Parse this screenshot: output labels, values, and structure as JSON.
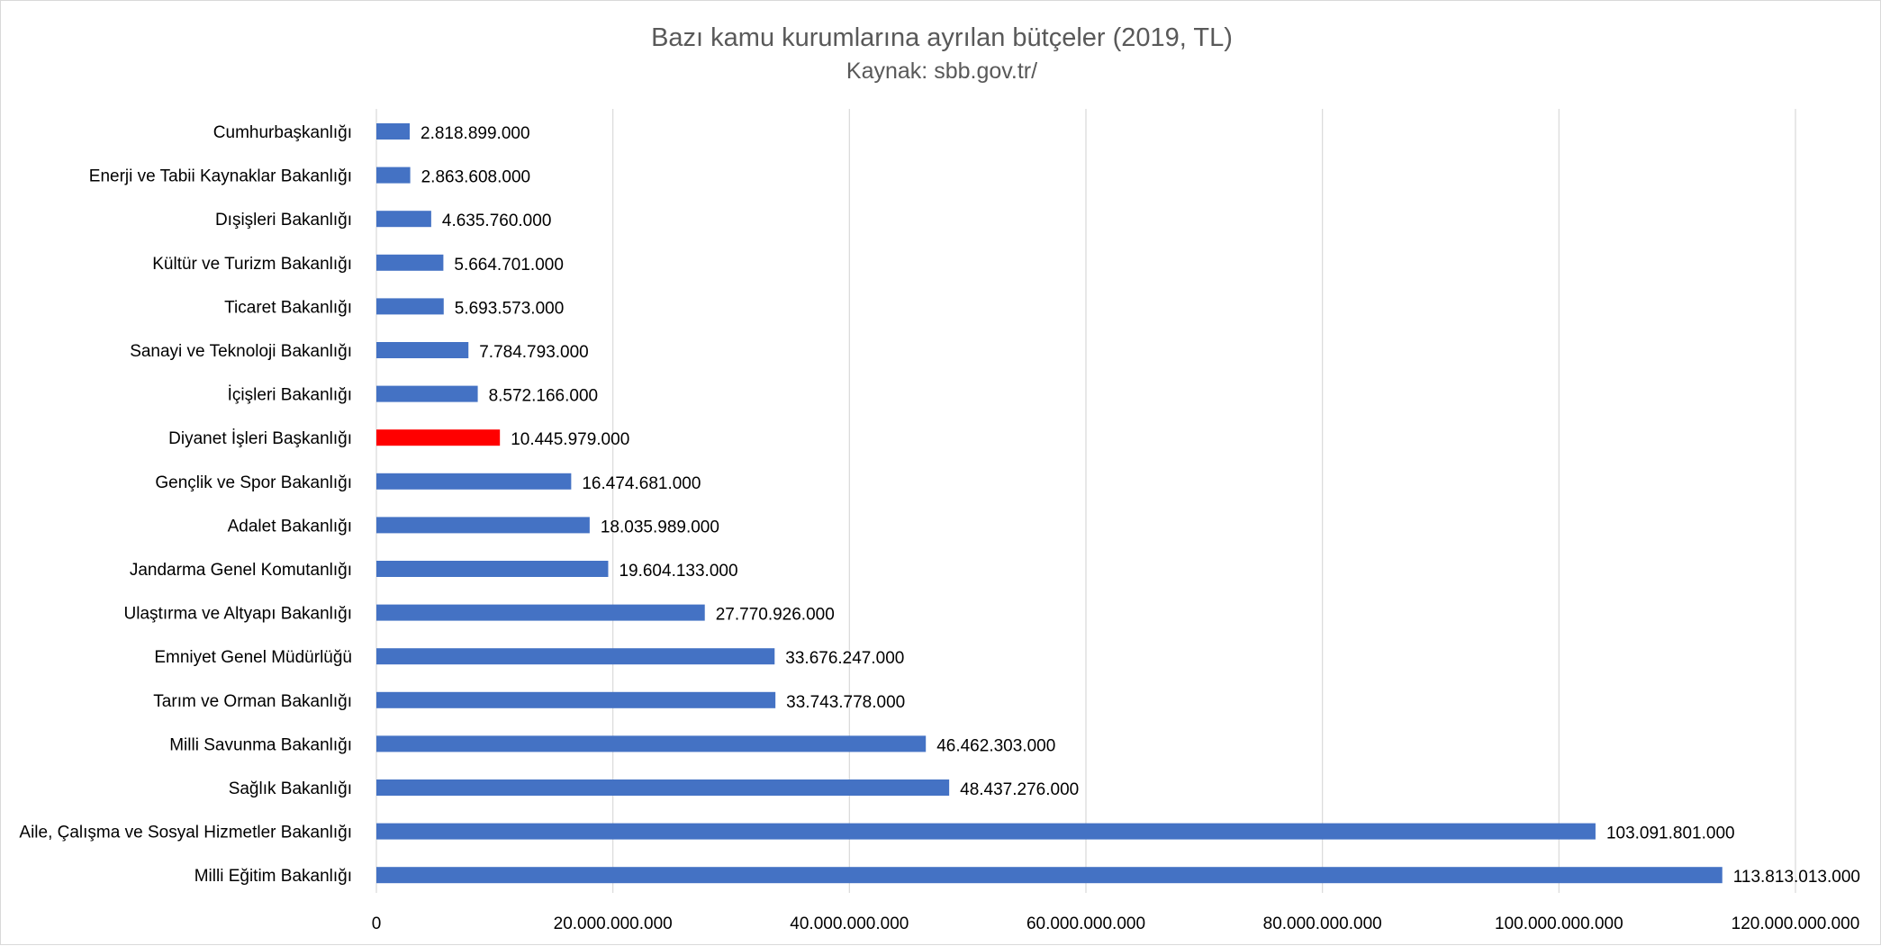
{
  "chart_data": {
    "type": "bar",
    "orientation": "horizontal",
    "title": "Bazı kamu kurumlarına ayrılan bütçeler (2019, TL)",
    "subtitle": "Kaynak: sbb.gov.tr/",
    "xlabel": "",
    "ylabel": "",
    "xlim": [
      0,
      120000000000
    ],
    "x_ticks": [
      0,
      20000000000,
      40000000000,
      60000000000,
      80000000000,
      100000000000,
      120000000000
    ],
    "x_tick_labels": [
      "0",
      "20.000.000.000",
      "40.000.000.000",
      "60.000.000.000",
      "80.000.000.000",
      "100.000.000.000",
      "120.000.000.000"
    ],
    "grid": "vertical",
    "legend": "none",
    "colors": {
      "default_bar": "#4472c4",
      "highlight_bar": "#ff0000",
      "gridline": "#d9d9d9",
      "text": "#000000",
      "title": "#595959"
    },
    "highlight_category": "Diyanet İşleri Başkanlığı",
    "categories": [
      "Cumhurbaşkanlığı",
      "Enerji ve Tabii Kaynaklar Bakanlığı",
      "Dışişleri Bakanlığı",
      "Kültür ve Turizm Bakanlığı",
      "Ticaret Bakanlığı",
      "Sanayi ve Teknoloji Bakanlığı",
      "İçişleri Bakanlığı",
      "Diyanet İşleri Başkanlığı",
      "Gençlik ve Spor Bakanlığı",
      "Adalet Bakanlığı",
      "Jandarma Genel Komutanlığı",
      "Ulaştırma ve Altyapı Bakanlığı",
      "Emniyet Genel Müdürlüğü",
      "Tarım ve Orman Bakanlığı",
      "Milli Savunma Bakanlığı",
      "Sağlık Bakanlığı",
      "Aile, Çalışma ve Sosyal Hizmetler Bakanlığı",
      "Milli Eğitim Bakanlığı"
    ],
    "values": [
      2818899000,
      2863608000,
      4635760000,
      5664701000,
      5693573000,
      7784793000,
      8572166000,
      10445979000,
      16474681000,
      18035989000,
      19604133000,
      27770926000,
      33676247000,
      33743778000,
      46462303000,
      48437276000,
      103091801000,
      113813013000
    ],
    "value_labels": [
      "2.818.899.000",
      "2.863.608.000",
      "4.635.760.000",
      "5.664.701.000",
      "5.693.573.000",
      "7.784.793.000",
      "8.572.166.000",
      "10.445.979.000",
      "16.474.681.000",
      "18.035.989.000",
      "19.604.133.000",
      "27.770.926.000",
      "33.676.247.000",
      "33.743.778.000",
      "46.462.303.000",
      "48.437.276.000",
      "103.091.801.000",
      "113.813.013.000"
    ]
  }
}
